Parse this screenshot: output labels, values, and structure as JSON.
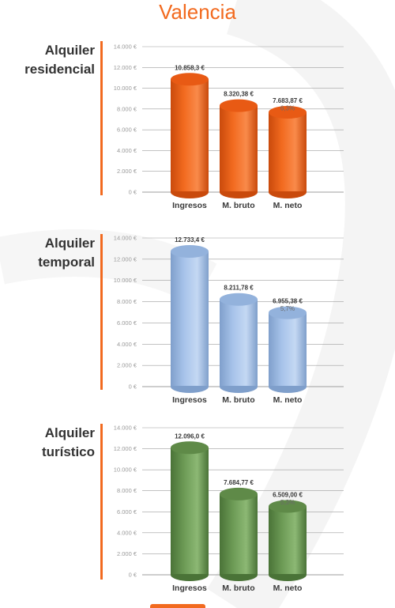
{
  "city": "Valencia",
  "colors": {
    "accent": "#f26a1f"
  },
  "chart_data": [
    {
      "type": "bar",
      "title_lines": [
        "Alquiler",
        "residencial"
      ],
      "categories": [
        "Ingresos",
        "M. bruto",
        "M. neto"
      ],
      "values": [
        10858.3,
        8320.38,
        7683.87
      ],
      "value_labels": [
        "10.858,3 €",
        "8.320,38 €",
        "7.683,87 €"
      ],
      "percent_labels": [
        "",
        "",
        "6,3%"
      ],
      "y_ticks": [
        "0 €",
        "2.000 €",
        "4.000 €",
        "6.000 €",
        "8.000 €",
        "10.000 €",
        "12.000 €",
        "14.000 €"
      ],
      "ylim": [
        0,
        14000
      ],
      "color": "orange"
    },
    {
      "type": "bar",
      "title_lines": [
        "Alquiler",
        "temporal"
      ],
      "categories": [
        "Ingresos",
        "M. bruto",
        "M. neto"
      ],
      "values": [
        12733.4,
        8211.78,
        6955.38
      ],
      "value_labels": [
        "12.733,4 €",
        "8.211,78 €",
        "6.955,38 €"
      ],
      "percent_labels": [
        "",
        "",
        "5,7%"
      ],
      "y_ticks": [
        "0 €",
        "2.000 €",
        "4.000 €",
        "6.000 €",
        "8.000 €",
        "10.000 €",
        "12.000 €",
        "14.000 €"
      ],
      "ylim": [
        0,
        14000
      ],
      "color": "blue"
    },
    {
      "type": "bar",
      "title_lines": [
        "Alquiler",
        "turístico"
      ],
      "categories": [
        "Ingresos",
        "M. bruto",
        "M. neto"
      ],
      "values": [
        12096.0,
        7684.77,
        6509.0
      ],
      "value_labels": [
        "12.096,0 €",
        "7.684,77 €",
        "6.509,00 €"
      ],
      "percent_labels": [
        "",
        "",
        "5,3%"
      ],
      "y_ticks": [
        "0 €",
        "2.000 €",
        "4.000 €",
        "6.000 €",
        "8.000 €",
        "10.000 €",
        "12.000 €",
        "14.000 €"
      ],
      "ylim": [
        0,
        14000
      ],
      "color": "green"
    }
  ]
}
